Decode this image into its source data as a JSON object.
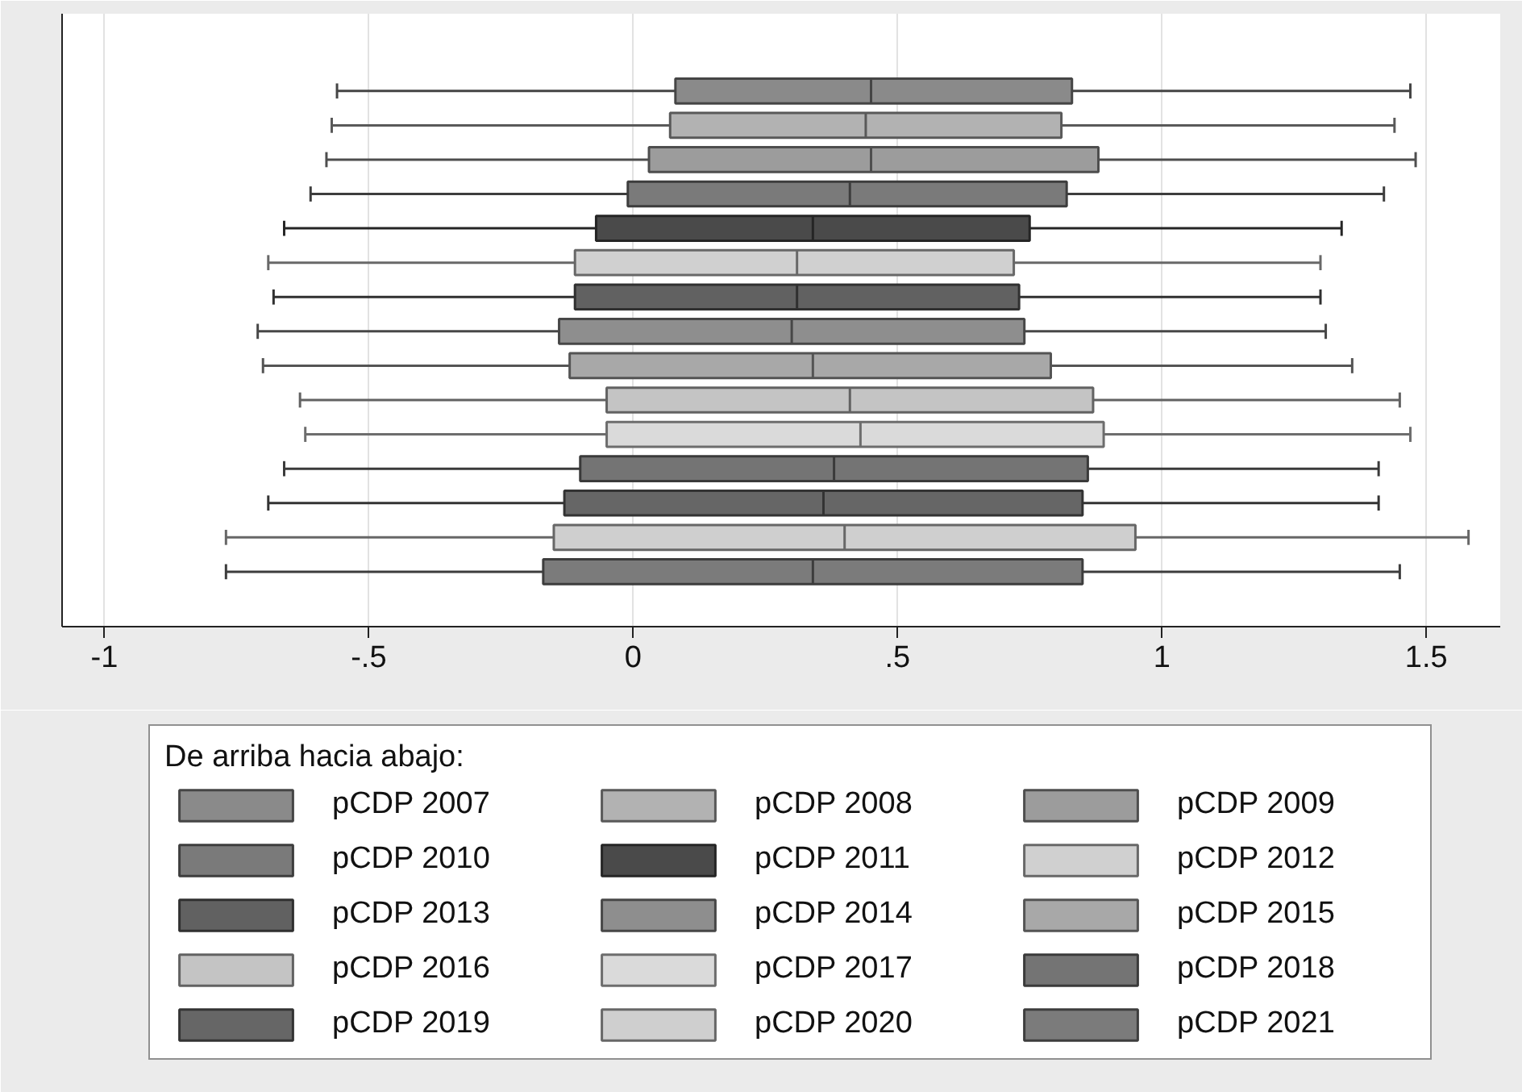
{
  "chart_data": {
    "type": "box",
    "orientation": "horizontal",
    "categories": [
      null
    ],
    "series": [
      {
        "name": "pCDP 2007",
        "color": "#8a8a8a",
        "boxes": [
          {
            "low": -0.56,
            "q1": 0.08,
            "median": 0.45,
            "q3": 0.83,
            "high": 1.47
          }
        ]
      },
      {
        "name": "pCDP 2008",
        "color": "#b2b2b2",
        "boxes": [
          {
            "low": -0.57,
            "q1": 0.07,
            "median": 0.44,
            "q3": 0.81,
            "high": 1.44
          }
        ]
      },
      {
        "name": "pCDP 2009",
        "color": "#9c9c9c",
        "boxes": [
          {
            "low": -0.58,
            "q1": 0.03,
            "median": 0.45,
            "q3": 0.88,
            "high": 1.48
          }
        ]
      },
      {
        "name": "pCDP 2010",
        "color": "#7a7a7a",
        "boxes": [
          {
            "low": -0.61,
            "q1": -0.01,
            "median": 0.41,
            "q3": 0.82,
            "high": 1.42
          }
        ]
      },
      {
        "name": "pCDP 2011",
        "color": "#4a4a4a",
        "boxes": [
          {
            "low": -0.66,
            "q1": -0.07,
            "median": 0.34,
            "q3": 0.75,
            "high": 1.34
          }
        ]
      },
      {
        "name": "pCDP 2012",
        "color": "#d0d0d0",
        "boxes": [
          {
            "low": -0.69,
            "q1": -0.11,
            "median": 0.31,
            "q3": 0.72,
            "high": 1.3
          }
        ]
      },
      {
        "name": "pCDP 2013",
        "color": "#616161",
        "boxes": [
          {
            "low": -0.68,
            "q1": -0.11,
            "median": 0.31,
            "q3": 0.73,
            "high": 1.3
          }
        ]
      },
      {
        "name": "pCDP 2014",
        "color": "#8e8e8e",
        "boxes": [
          {
            "low": -0.71,
            "q1": -0.14,
            "median": 0.3,
            "q3": 0.74,
            "high": 1.31
          }
        ]
      },
      {
        "name": "pCDP 2015",
        "color": "#a8a8a8",
        "boxes": [
          {
            "low": -0.7,
            "q1": -0.12,
            "median": 0.34,
            "q3": 0.79,
            "high": 1.36
          }
        ]
      },
      {
        "name": "pCDP 2016",
        "color": "#c4c4c4",
        "boxes": [
          {
            "low": -0.63,
            "q1": -0.05,
            "median": 0.41,
            "q3": 0.87,
            "high": 1.45
          }
        ]
      },
      {
        "name": "pCDP 2017",
        "color": "#dadada",
        "boxes": [
          {
            "low": -0.62,
            "q1": -0.05,
            "median": 0.43,
            "q3": 0.89,
            "high": 1.47
          }
        ]
      },
      {
        "name": "pCDP 2018",
        "color": "#747474",
        "boxes": [
          {
            "low": -0.66,
            "q1": -0.1,
            "median": 0.38,
            "q3": 0.86,
            "high": 1.41
          }
        ]
      },
      {
        "name": "pCDP 2019",
        "color": "#666666",
        "boxes": [
          {
            "low": -0.69,
            "q1": -0.13,
            "median": 0.36,
            "q3": 0.85,
            "high": 1.41
          }
        ]
      },
      {
        "name": "pCDP 2020",
        "color": "#cfcfcf",
        "boxes": [
          {
            "low": -0.77,
            "q1": -0.15,
            "median": 0.4,
            "q3": 0.95,
            "high": 1.58
          }
        ]
      },
      {
        "name": "pCDP 2021",
        "color": "#7b7b7b",
        "boxes": [
          {
            "low": -0.77,
            "q1": -0.17,
            "median": 0.34,
            "q3": 0.85,
            "high": 1.45
          }
        ]
      }
    ],
    "xlim": [
      -1.08,
      1.64
    ],
    "xticks": [
      -1,
      {
        "value": -0.5,
        "label": "-.5"
      },
      0,
      {
        "value": 0.5,
        "label": ".5"
      },
      1,
      1.5
    ],
    "grid": "x",
    "legend": "bottom",
    "legend_title": "De arriba hacia abajo:",
    "tick_labels": "x"
  }
}
